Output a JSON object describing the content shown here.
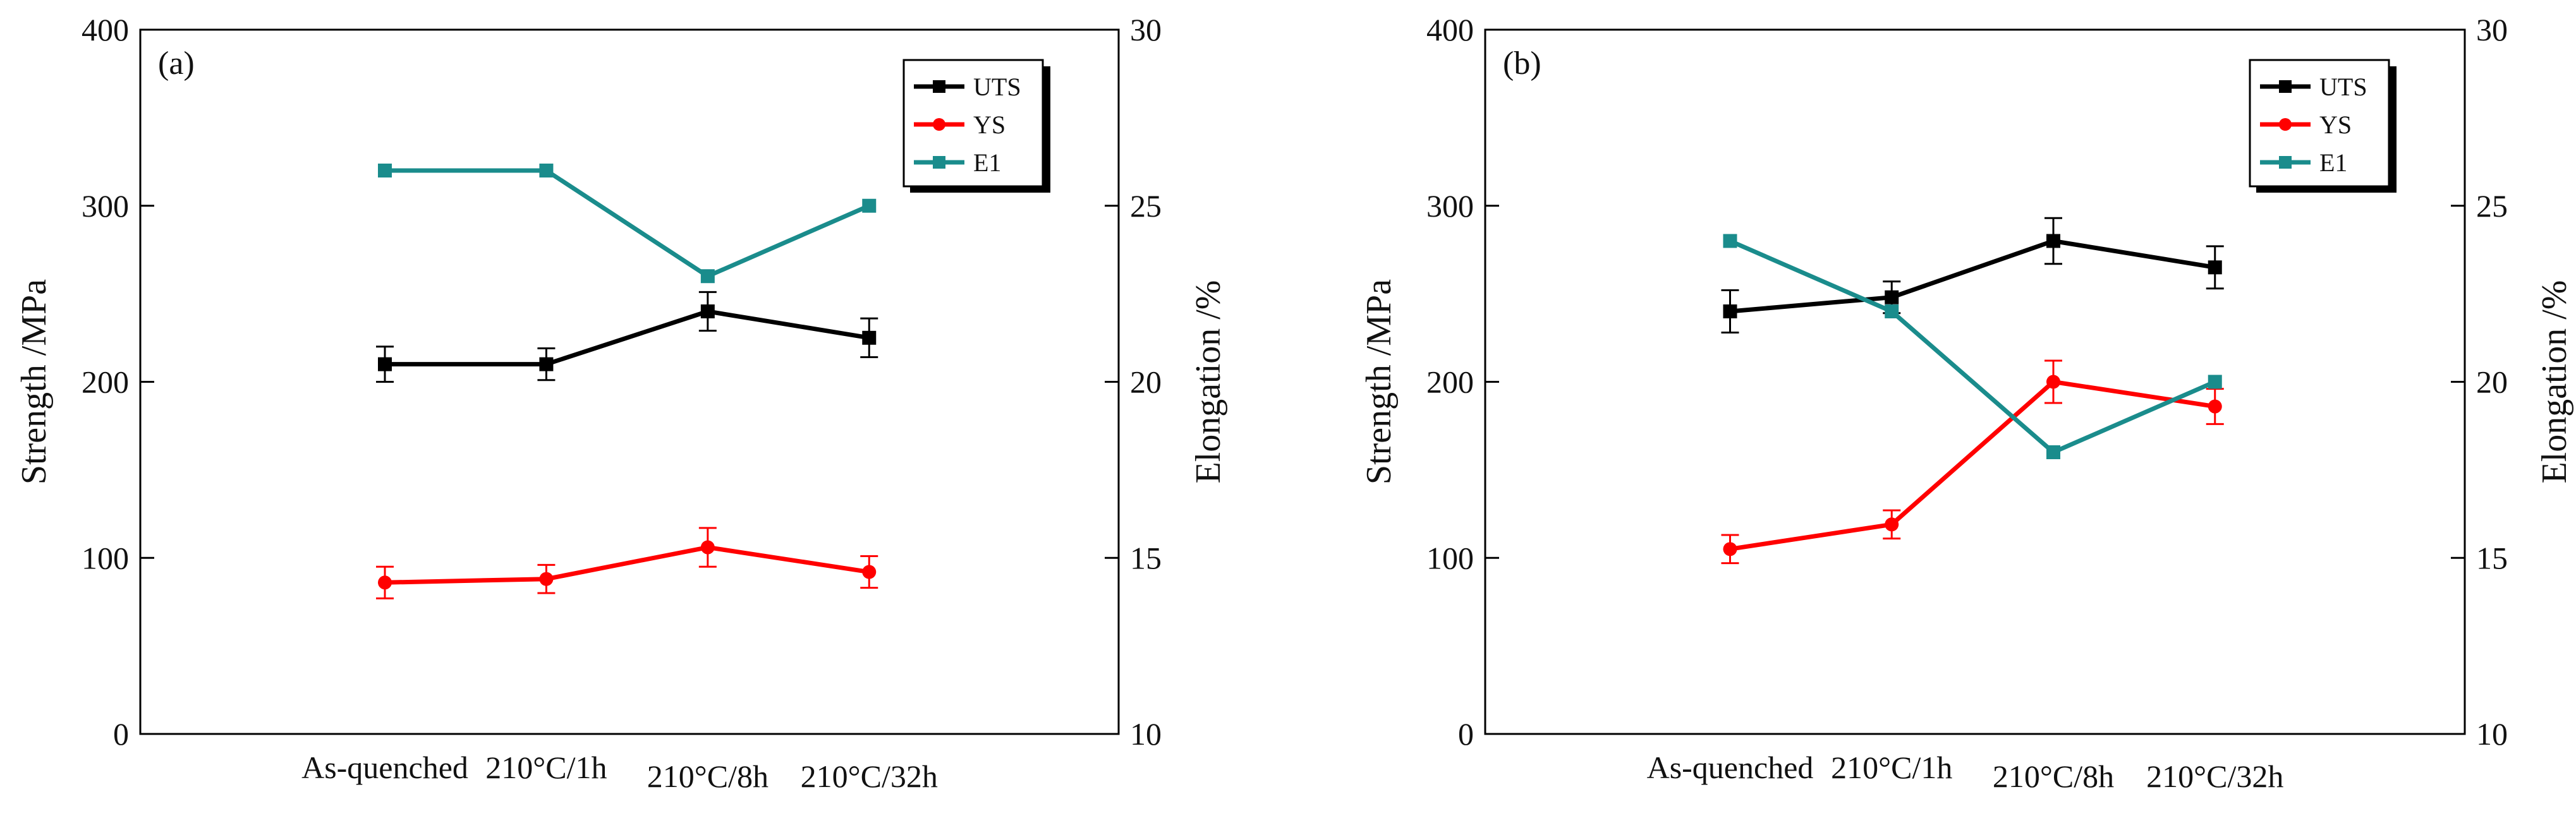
{
  "chart_data": [
    {
      "type": "line",
      "panel_label": "(a)",
      "categories": [
        "As-quenched",
        "210°C/1h",
        "210°C/8h",
        "210°C/32h"
      ],
      "ylabel": "Strength /MPa",
      "ylabel_right": "Elongation /%",
      "ylim": [
        0,
        400
      ],
      "yticks": [
        0,
        100,
        200,
        300,
        400
      ],
      "ylim_right": [
        10,
        30
      ],
      "yticks_right": [
        10,
        15,
        20,
        25,
        30
      ],
      "legend_position": "top-right",
      "series": [
        {
          "name": "UTS",
          "axis": "left",
          "color": "#000000",
          "marker": "square",
          "values": [
            210,
            210,
            240,
            225
          ],
          "errors": [
            10,
            9,
            11,
            11
          ]
        },
        {
          "name": "YS",
          "axis": "left",
          "color": "#ff0000",
          "marker": "circle",
          "values": [
            86,
            88,
            106,
            92
          ],
          "errors": [
            9,
            8,
            11,
            9
          ]
        },
        {
          "name": "E1",
          "axis": "right",
          "color": "#1a8c8c",
          "marker": "square",
          "values": [
            26,
            26,
            23,
            25
          ],
          "errors": [
            0,
            0,
            0,
            0
          ]
        }
      ]
    },
    {
      "type": "line",
      "panel_label": "(b)",
      "categories": [
        "As-quenched",
        "210°C/1h",
        "210°C/8h",
        "210°C/32h"
      ],
      "ylabel": "Strength /MPa",
      "ylabel_right": "Elongation /%",
      "ylim": [
        0,
        400
      ],
      "yticks": [
        0,
        100,
        200,
        300,
        400
      ],
      "ylim_right": [
        10,
        30
      ],
      "yticks_right": [
        10,
        15,
        20,
        25,
        30
      ],
      "legend_position": "top-right",
      "series": [
        {
          "name": "UTS",
          "axis": "left",
          "color": "#000000",
          "marker": "square",
          "values": [
            240,
            248,
            280,
            265
          ],
          "errors": [
            12,
            9,
            13,
            12
          ]
        },
        {
          "name": "YS",
          "axis": "left",
          "color": "#ff0000",
          "marker": "circle",
          "values": [
            105,
            119,
            200,
            186
          ],
          "errors": [
            8,
            8,
            12,
            10
          ]
        },
        {
          "name": "E1",
          "axis": "right",
          "color": "#1a8c8c",
          "marker": "square",
          "values": [
            24,
            22,
            18,
            20
          ],
          "errors": [
            0,
            0,
            0,
            0
          ]
        }
      ]
    }
  ]
}
